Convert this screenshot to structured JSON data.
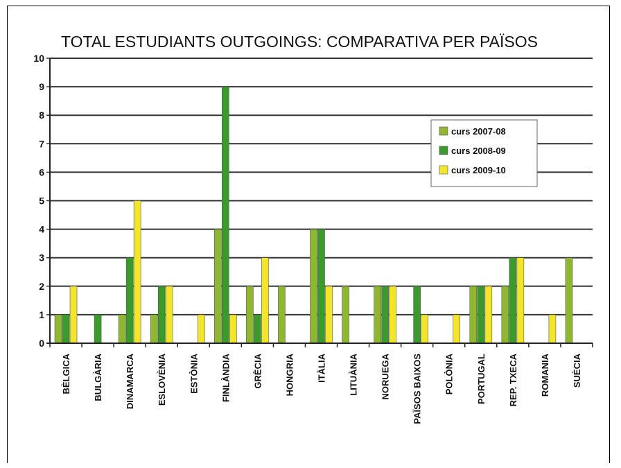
{
  "chart_data": {
    "type": "bar",
    "title": "TOTAL ESTUDIANTS OUTGOINGS: COMPARATIVA PER PAÏSOS",
    "xlabel": "",
    "ylabel": "",
    "ylim": [
      0,
      10
    ],
    "yticks": [
      0,
      1,
      2,
      3,
      4,
      5,
      6,
      7,
      8,
      9,
      10
    ],
    "grid": true,
    "legend_position": "right",
    "categories": [
      "BÈLGICA",
      "BULGÀRIA",
      "DINAMARCA",
      "ESLOVÈNIA",
      "ESTÒNIA",
      "FINLÀNDIA",
      "GRÈCIA",
      "HONGRIA",
      "ITÀLIA",
      "LITUÀNIA",
      "NORUEGA",
      "PAÏSOS BAIXOS",
      "POLÒNIA",
      "PORTUGAL",
      "REP. TXECA",
      "ROMANIA",
      "SUÈCIA"
    ],
    "series": [
      {
        "name": "curs 2007-08",
        "color": "#8fb830",
        "values": [
          1,
          0,
          1,
          1,
          0,
          4,
          2,
          2,
          4,
          2,
          2,
          0,
          0,
          2,
          2,
          0,
          3
        ]
      },
      {
        "name": "curs 2008-09",
        "color": "#3a9a2c",
        "values": [
          1,
          1,
          3,
          2,
          0,
          9,
          1,
          0,
          4,
          0,
          2,
          2,
          0,
          2,
          3,
          0,
          0
        ]
      },
      {
        "name": "curs 2009-10",
        "color": "#f2e52a",
        "values": [
          2,
          0,
          5,
          2,
          1,
          1,
          3,
          0,
          2,
          0,
          2,
          1,
          1,
          2,
          3,
          1,
          0
        ]
      }
    ]
  }
}
